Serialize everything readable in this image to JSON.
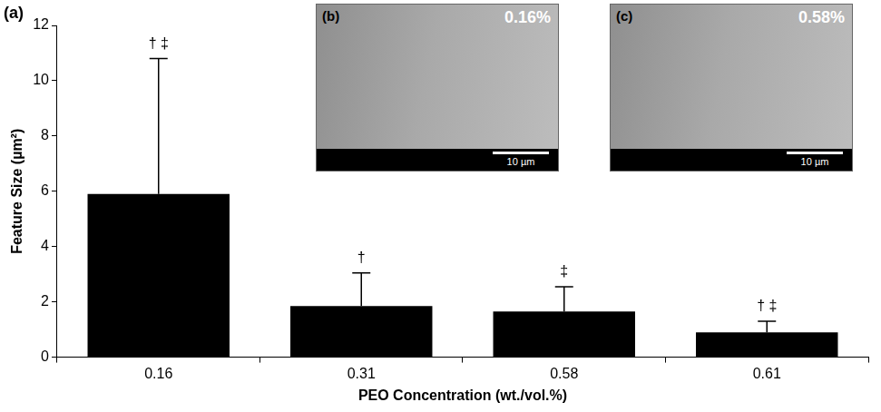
{
  "chart_data": {
    "type": "bar",
    "panel": "(a)",
    "categories": [
      "0.16",
      "0.31",
      "0.58",
      "0.61"
    ],
    "values": [
      5.9,
      1.85,
      1.65,
      0.9
    ],
    "errors": [
      4.9,
      1.2,
      0.9,
      0.4
    ],
    "annotations": [
      "† ‡",
      "†",
      "‡",
      "† ‡"
    ],
    "color": "#000000",
    "x_label": "PEO Concentration (wt./vol.%)",
    "y_label": "Feature Size (µm²)",
    "ylim": [
      0,
      12
    ],
    "yticks": [
      0,
      2,
      4,
      6,
      8,
      10,
      12
    ],
    "grid": false,
    "insets": [
      {
        "label": "(b)",
        "text": "0.16%",
        "scale_bar": "10 µm"
      },
      {
        "label": "(c)",
        "text": "0.58%",
        "scale_bar": "10 µm"
      }
    ]
  }
}
